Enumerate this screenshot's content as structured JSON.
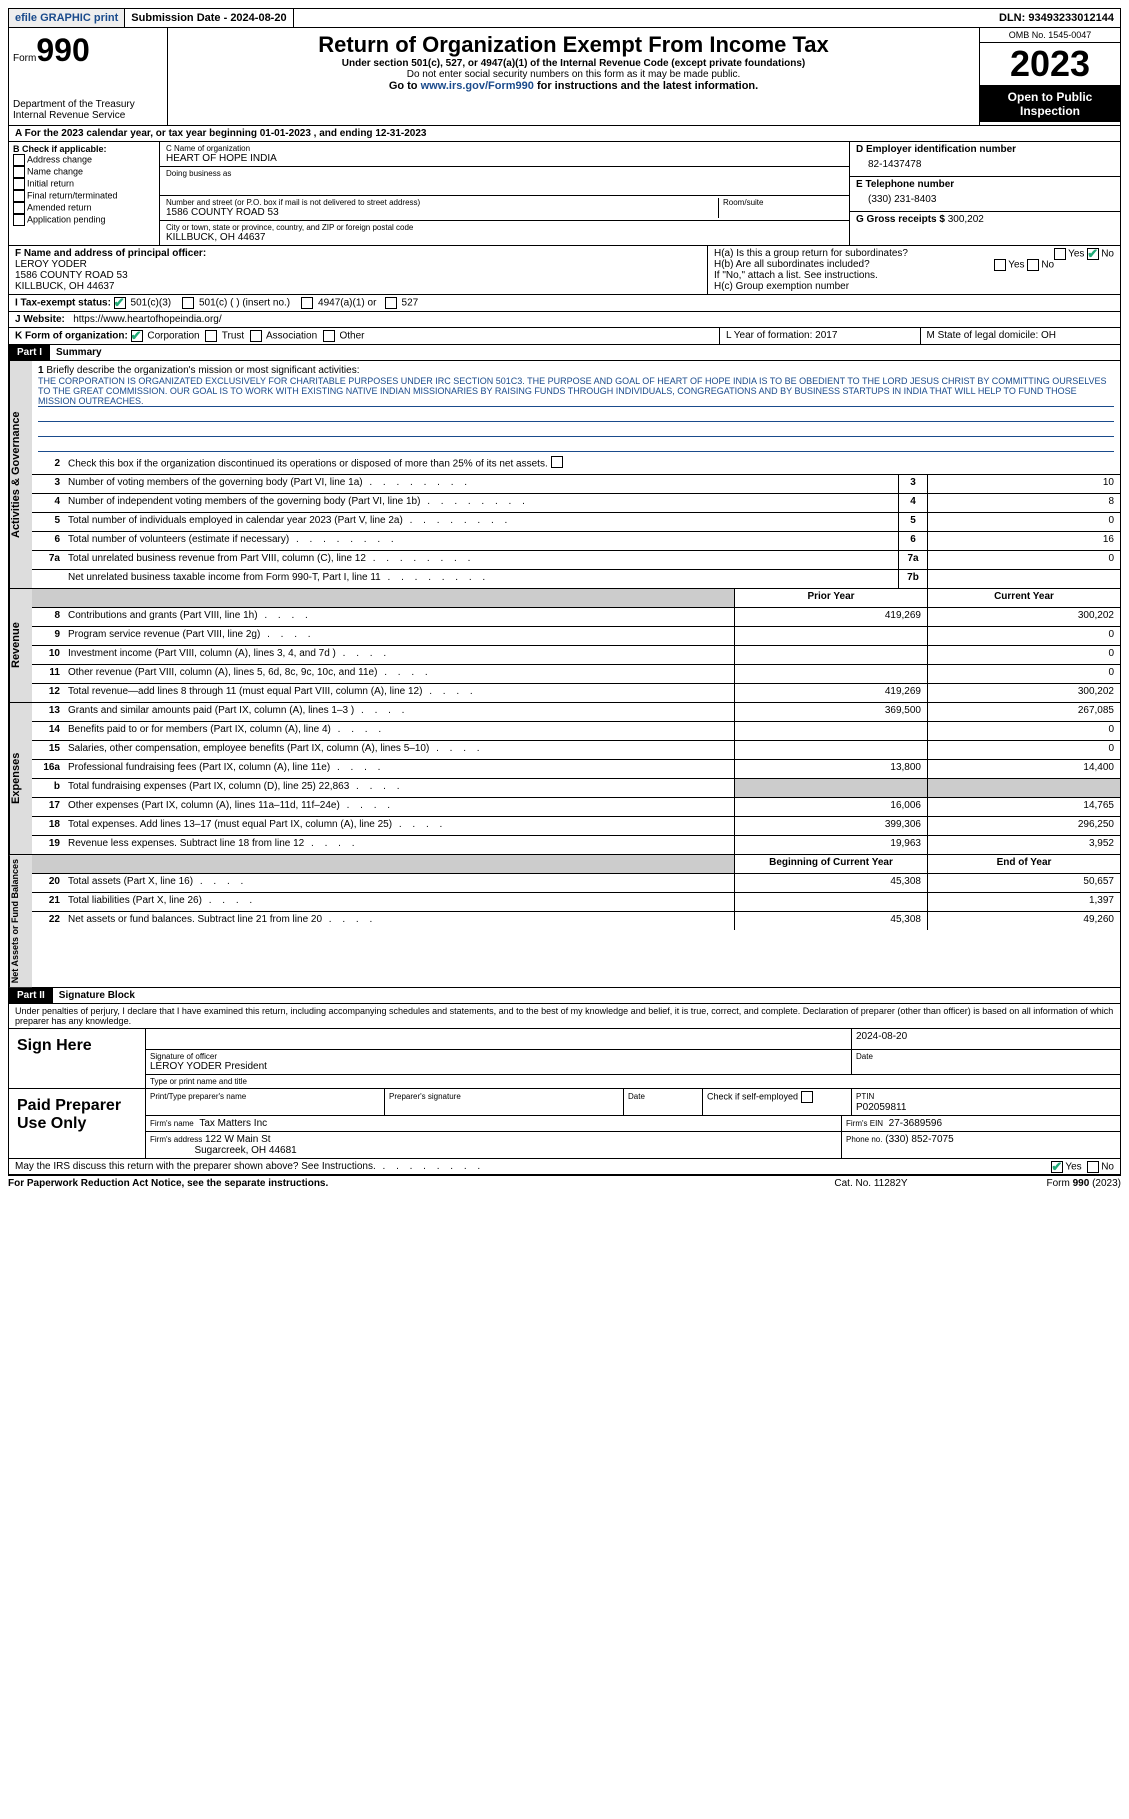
{
  "top": {
    "efile": "efile GRAPHIC print",
    "sub_label": "Submission Date - 2024-08-20",
    "dln": "DLN: 93493233012144"
  },
  "header": {
    "form_word": "Form",
    "form_num": "990",
    "dept": "Department of the Treasury Internal Revenue Service",
    "title": "Return of Organization Exempt From Income Tax",
    "sub1": "Under section 501(c), 527, or 4947(a)(1) of the Internal Revenue Code (except private foundations)",
    "sub2": "Do not enter social security numbers on this form as it may be made public.",
    "sub3_pre": "Go to ",
    "sub3_link": "www.irs.gov/Form990",
    "sub3_post": " for instructions and the latest information.",
    "omb": "OMB No. 1545-0047",
    "year": "2023",
    "open": "Open to Public Inspection"
  },
  "rowA": "A  For the 2023 calendar year, or tax year beginning 01-01-2023   , and ending 12-31-2023",
  "boxB": {
    "hdr": "B Check if applicable:",
    "opts": [
      "Address change",
      "Name change",
      "Initial return",
      "Final return/terminated",
      "Amended return",
      "Application pending"
    ]
  },
  "boxC": {
    "name_lbl": "C Name of organization",
    "name": "HEART OF HOPE INDIA",
    "dba_lbl": "Doing business as",
    "addr_lbl": "Number and street (or P.O. box if mail is not delivered to street address)",
    "room_lbl": "Room/suite",
    "addr": "1586 COUNTY ROAD 53",
    "city_lbl": "City or town, state or province, country, and ZIP or foreign postal code",
    "city": "KILLBUCK, OH  44637"
  },
  "boxD": {
    "ein_lbl": "D Employer identification number",
    "ein": "82-1437478",
    "tel_lbl": "E Telephone number",
    "tel": "(330) 231-8403",
    "gross_lbl": "G Gross receipts $",
    "gross": "300,202"
  },
  "boxF": {
    "lbl": "F Name and address of principal officer:",
    "name": "LEROY YODER",
    "addr1": "1586 COUNTY ROAD 53",
    "addr2": "KILLBUCK, OH  44637"
  },
  "boxH": {
    "a": "H(a)  Is this a group return for subordinates?",
    "b": "H(b)  Are all subordinates included?",
    "b2": "If \"No,\" attach a list. See instructions.",
    "c": "H(c)  Group exemption number"
  },
  "rowI": {
    "lbl": "I   Tax-exempt status:",
    "o1": "501(c)(3)",
    "o2": "501(c) (  ) (insert no.)",
    "o3": "4947(a)(1) or",
    "o4": "527"
  },
  "rowJ": {
    "lbl": "J   Website:",
    "val": "https://www.heartofhopeindia.org/"
  },
  "rowK": {
    "lbl": "K Form of organization:",
    "opts": [
      "Corporation",
      "Trust",
      "Association",
      "Other"
    ],
    "L": "L Year of formation: 2017",
    "M": "M State of legal domicile: OH"
  },
  "part1": {
    "hdr": "Part I",
    "title": "Summary",
    "q1": "Briefly describe the organization's mission or most significant activities:",
    "mission": "THE CORPORATION IS ORGANIZATED EXCLUSIVELY FOR CHARITABLE PURPOSES UNDER IRC SECTION 501C3. THE PURPOSE AND GOAL OF HEART OF HOPE INDIA IS TO BE OBEDIENT TO THE LORD JESUS CHRIST BY COMMITTING OURSELVES TO THE GREAT COMMISSION. OUR GOAL IS TO WORK WITH EXISTING NATIVE INDIAN MISSIONARIES BY RAISING FUNDS THROUGH INDIVIDUALS, CONGREGATIONS AND BY BUSINESS STARTUPS IN INDIA THAT WILL HELP TO FUND THOSE MISSION OUTREACHES.",
    "q2": "Check this box        if the organization discontinued its operations or disposed of more than 25% of its net assets.",
    "tabs": {
      "ag": "Activities & Governance",
      "rev": "Revenue",
      "exp": "Expenses",
      "net": "Net Assets or Fund Balances"
    },
    "lines_ag": [
      {
        "n": "3",
        "t": "Number of voting members of the governing body (Part VI, line 1a)",
        "c": "3",
        "v": "10"
      },
      {
        "n": "4",
        "t": "Number of independent voting members of the governing body (Part VI, line 1b)",
        "c": "4",
        "v": "8"
      },
      {
        "n": "5",
        "t": "Total number of individuals employed in calendar year 2023 (Part V, line 2a)",
        "c": "5",
        "v": "0"
      },
      {
        "n": "6",
        "t": "Total number of volunteers (estimate if necessary)",
        "c": "6",
        "v": "16"
      },
      {
        "n": "7a",
        "t": "Total unrelated business revenue from Part VIII, column (C), line 12",
        "c": "7a",
        "v": "0"
      },
      {
        "n": "",
        "t": "Net unrelated business taxable income from Form 990-T, Part I, line 11",
        "c": "7b",
        "v": ""
      }
    ],
    "col_hdrs": {
      "py": "Prior Year",
      "cy": "Current Year"
    },
    "lines_rev": [
      {
        "n": "8",
        "t": "Contributions and grants (Part VIII, line 1h)",
        "py": "419,269",
        "cy": "300,202"
      },
      {
        "n": "9",
        "t": "Program service revenue (Part VIII, line 2g)",
        "py": "",
        "cy": "0"
      },
      {
        "n": "10",
        "t": "Investment income (Part VIII, column (A), lines 3, 4, and 7d )",
        "py": "",
        "cy": "0"
      },
      {
        "n": "11",
        "t": "Other revenue (Part VIII, column (A), lines 5, 6d, 8c, 9c, 10c, and 11e)",
        "py": "",
        "cy": "0"
      },
      {
        "n": "12",
        "t": "Total revenue—add lines 8 through 11 (must equal Part VIII, column (A), line 12)",
        "py": "419,269",
        "cy": "300,202"
      }
    ],
    "lines_exp": [
      {
        "n": "13",
        "t": "Grants and similar amounts paid (Part IX, column (A), lines 1–3 )",
        "py": "369,500",
        "cy": "267,085"
      },
      {
        "n": "14",
        "t": "Benefits paid to or for members (Part IX, column (A), line 4)",
        "py": "",
        "cy": "0"
      },
      {
        "n": "15",
        "t": "Salaries, other compensation, employee benefits (Part IX, column (A), lines 5–10)",
        "py": "",
        "cy": "0"
      },
      {
        "n": "16a",
        "t": "Professional fundraising fees (Part IX, column (A), line 11e)",
        "py": "13,800",
        "cy": "14,400"
      },
      {
        "n": "b",
        "t": "Total fundraising expenses (Part IX, column (D), line 25) 22,863",
        "py": "SHADE",
        "cy": "SHADE"
      },
      {
        "n": "17",
        "t": "Other expenses (Part IX, column (A), lines 11a–11d, 11f–24e)",
        "py": "16,006",
        "cy": "14,765"
      },
      {
        "n": "18",
        "t": "Total expenses. Add lines 13–17 (must equal Part IX, column (A), line 25)",
        "py": "399,306",
        "cy": "296,250"
      },
      {
        "n": "19",
        "t": "Revenue less expenses. Subtract line 18 from line 12",
        "py": "19,963",
        "cy": "3,952"
      }
    ],
    "col_hdrs2": {
      "py": "Beginning of Current Year",
      "cy": "End of Year"
    },
    "lines_net": [
      {
        "n": "20",
        "t": "Total assets (Part X, line 16)",
        "py": "45,308",
        "cy": "50,657"
      },
      {
        "n": "21",
        "t": "Total liabilities (Part X, line 26)",
        "py": "",
        "cy": "1,397"
      },
      {
        "n": "22",
        "t": "Net assets or fund balances. Subtract line 21 from line 20",
        "py": "45,308",
        "cy": "49,260"
      }
    ]
  },
  "part2": {
    "hdr": "Part II",
    "title": "Signature Block",
    "decl": "Under penalties of perjury, I declare that I have examined this return, including accompanying schedules and statements, and to the best of my knowledge and belief, it is true, correct, and complete. Declaration of preparer (other than officer) is based on all information of which preparer has any knowledge.",
    "sign_here": "Sign Here",
    "sig_off": "Signature of officer",
    "sig_name": "LEROY YODER  President",
    "sig_type": "Type or print name and title",
    "sig_date_lbl": "Date",
    "sig_date": "2024-08-20",
    "paid": "Paid Preparer Use Only",
    "prep_name_lbl": "Print/Type preparer's name",
    "prep_sig_lbl": "Preparer's signature",
    "date_lbl": "Date",
    "check_lbl": "Check         if self-employed",
    "ptin_lbl": "PTIN",
    "ptin": "P02059811",
    "firm_name_lbl": "Firm's name",
    "firm_name": "Tax Matters Inc",
    "firm_ein_lbl": "Firm's EIN",
    "firm_ein": "27-3689596",
    "firm_addr_lbl": "Firm's address",
    "firm_addr": "122 W Main St",
    "firm_city": "Sugarcreek, OH  44681",
    "phone_lbl": "Phone no.",
    "phone": "(330) 852-7075",
    "discuss": "May the IRS discuss this return with the preparer shown above? See Instructions."
  },
  "footer": {
    "left": "For Paperwork Reduction Act Notice, see the separate instructions.",
    "mid": "Cat. No. 11282Y",
    "right": "Form 990 (2023)"
  }
}
